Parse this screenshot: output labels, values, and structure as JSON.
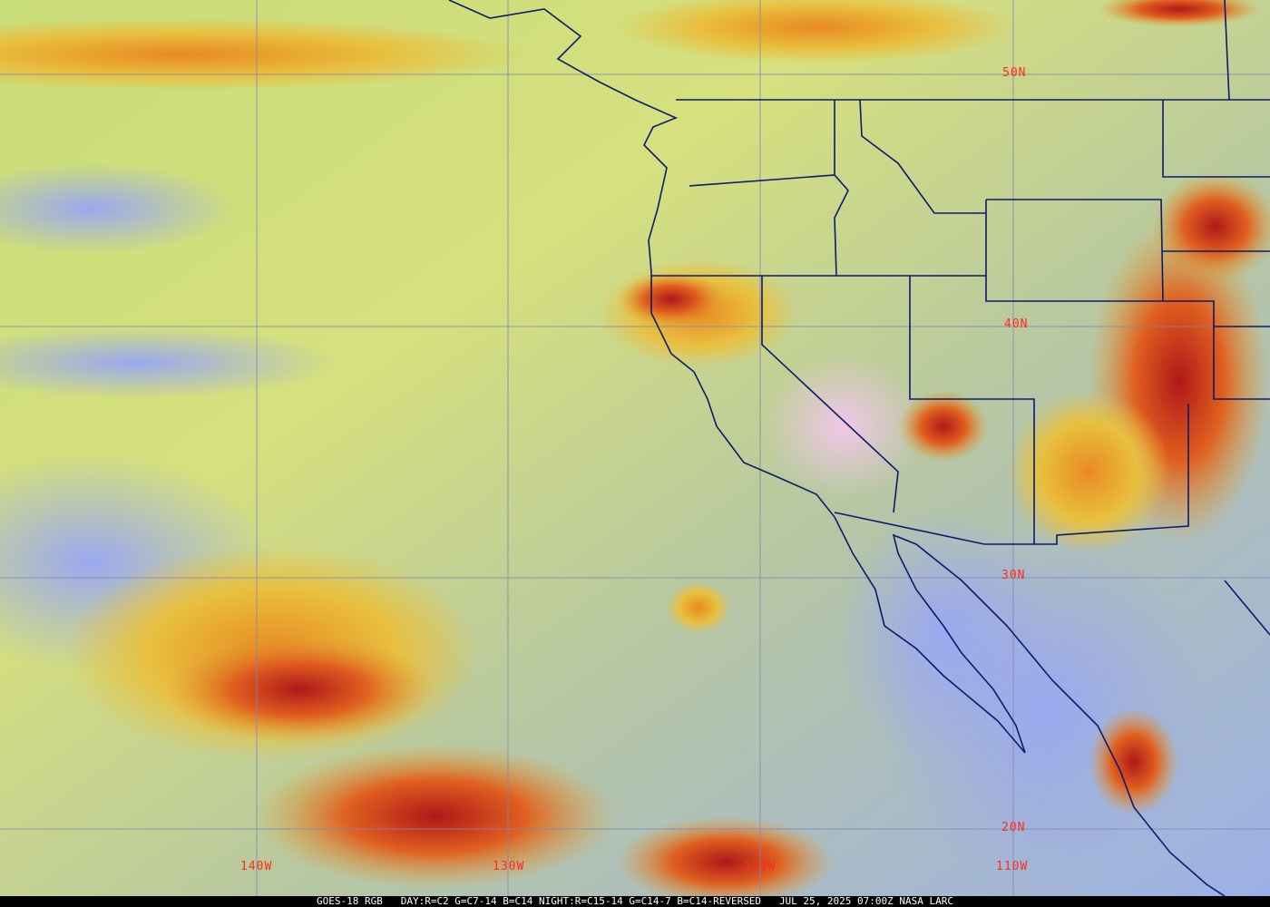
{
  "image": {
    "satellite": "GOES-18",
    "product": "RGB",
    "coastline_color": "#0a1a6e",
    "grid_color": "#7f86b8",
    "label_color": "#ff2a1a"
  },
  "latitude_labels": [
    "50N",
    "40N",
    "30N",
    "20N"
  ],
  "longitude_labels": [
    "140W",
    "130W",
    "120W",
    "110W"
  ],
  "caption": {
    "satellite": "GOES-18 RGB",
    "recipe": "DAY:R=C2 G=C7-14 B=C14 NIGHT:R=C15-14 G=C14-7 B=C14-REVERSED",
    "timestamp": "JUL 25, 2025 07:00Z",
    "source": "NASA LARC"
  }
}
